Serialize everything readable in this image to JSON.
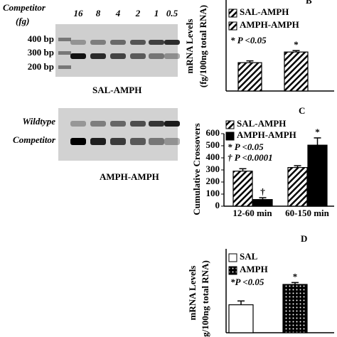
{
  "gels": {
    "competitor_label": "Competitor",
    "unit_label": "(fg)",
    "lanes": [
      "16",
      "8",
      "4",
      "2",
      "1",
      "0.5"
    ],
    "markers": [
      "400 bp",
      "300 bp",
      "200 bp"
    ],
    "gel1_caption": "SAL-AMPH",
    "band_labels": [
      "Wildtype",
      "Competitor"
    ],
    "gel2_caption": "AMPH-AMPH"
  },
  "chart_data": [
    {
      "type": "bar",
      "label": "B",
      "ylabel": [
        "mRNA Levels",
        "(fg/100ng total RNA)"
      ],
      "categories": [
        null
      ],
      "ylim": [
        0,
        7.7
      ],
      "series": [
        {
          "name": "SAL-AMPH",
          "color": "#000000",
          "pattern": "hatch",
          "values": [
            2.4
          ],
          "errors": [
            0.15
          ]
        },
        {
          "name": "AMPH-AMPH",
          "color": "#000000",
          "pattern": "hatch",
          "values": [
            3.3
          ],
          "errors": [
            0.12
          ],
          "marks": [
            "*"
          ]
        }
      ],
      "notes": [
        "* P <0.05"
      ]
    },
    {
      "type": "bar",
      "label": "C",
      "ylabel": [
        "Cumulative Crossovers"
      ],
      "categories": [
        "12-60 min",
        "60-150 min"
      ],
      "ylim": [
        0,
        600
      ],
      "yticks": [
        0,
        100,
        200,
        300,
        400,
        500,
        600
      ],
      "series": [
        {
          "name": "SAL-AMPH",
          "color": "#000000",
          "pattern": "hatch",
          "values": [
            290,
            320
          ],
          "errors": [
            20,
            15
          ]
        },
        {
          "name": "AMPH-AMPH",
          "color": "#000000",
          "pattern": "solid",
          "values": [
            55,
            505
          ],
          "errors": [
            15,
            60
          ],
          "marks": [
            "†",
            "*"
          ]
        }
      ],
      "notes": [
        "* P <0.05",
        "† P <0.0001"
      ]
    },
    {
      "type": "bar",
      "label": "D",
      "ylabel": [
        "mRNA Levels",
        "g/100ng total RNA)"
      ],
      "categories": [
        null
      ],
      "ylim": [
        0,
        6.6
      ],
      "series": [
        {
          "name": "SAL",
          "color": "#000000",
          "pattern": "open",
          "values": [
            2.2
          ],
          "errors": [
            0.3
          ]
        },
        {
          "name": "AMPH",
          "color": "#000000",
          "pattern": "dots",
          "values": [
            3.8
          ],
          "errors": [
            0.15
          ],
          "marks": [
            "*"
          ]
        }
      ],
      "notes": [
        "*P <0.05"
      ]
    }
  ]
}
